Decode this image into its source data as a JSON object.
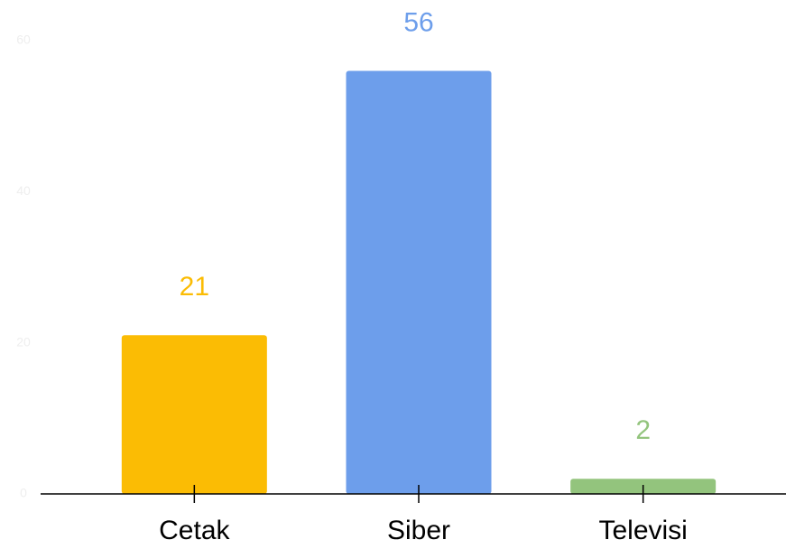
{
  "chart_data": {
    "type": "bar",
    "categories": [
      "Cetak",
      "Siber",
      "Televisi"
    ],
    "values": [
      21,
      56,
      2
    ],
    "colors": [
      "#fbbc04",
      "#6d9eeb",
      "#93c47d"
    ],
    "ylim": [
      0,
      60
    ],
    "yticks": [
      0,
      20,
      40,
      60
    ],
    "grid": false
  }
}
